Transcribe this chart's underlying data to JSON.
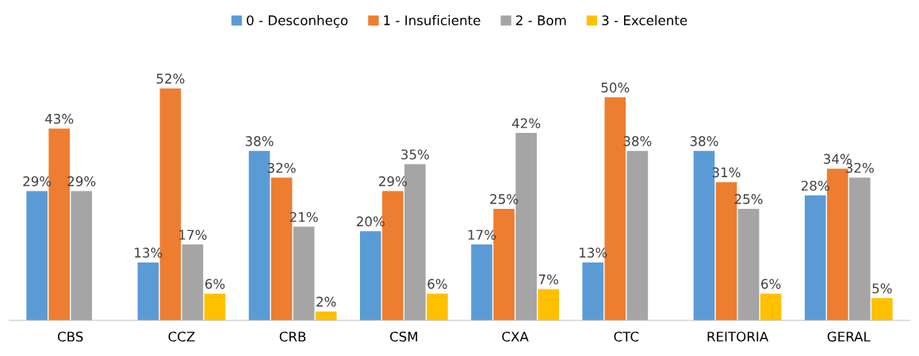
{
  "chart_data": {
    "type": "bar",
    "categories": [
      "CBS",
      "CCZ",
      "CRB",
      "CSM",
      "CXA",
      "CTC",
      "REITORIA",
      "GERAL"
    ],
    "series": [
      {
        "name": "0 - Desconheço",
        "color": "#5b9bd5",
        "values": [
          29,
          13,
          38,
          20,
          17,
          13,
          38,
          28
        ],
        "value_labels": [
          "29%",
          "13%",
          "38%",
          "20%",
          "17%",
          "13%",
          "38%",
          "28%"
        ]
      },
      {
        "name": "1 - Insuficiente",
        "color": "#ed7d31",
        "values": [
          43,
          52,
          32,
          29,
          25,
          50,
          31,
          34
        ],
        "value_labels": [
          "43%",
          "52%",
          "32%",
          "29%",
          "25%",
          "50%",
          "31%",
          "34%"
        ]
      },
      {
        "name": "2 - Bom",
        "color": "#a5a5a5",
        "values": [
          29,
          17,
          21,
          35,
          42,
          38,
          25,
          32
        ],
        "value_labels": [
          "29%",
          "17%",
          "21%",
          "35%",
          "42%",
          "38%",
          "25%",
          "32%"
        ]
      },
      {
        "name": "3 - Excelente",
        "color": "#ffc000",
        "values": [
          null,
          6,
          2,
          6,
          7,
          null,
          6,
          5
        ],
        "value_labels": [
          null,
          "6%",
          "2%",
          "6%",
          "7%",
          null,
          "6%",
          "5%"
        ]
      }
    ],
    "legend": "top",
    "grid": false
  }
}
